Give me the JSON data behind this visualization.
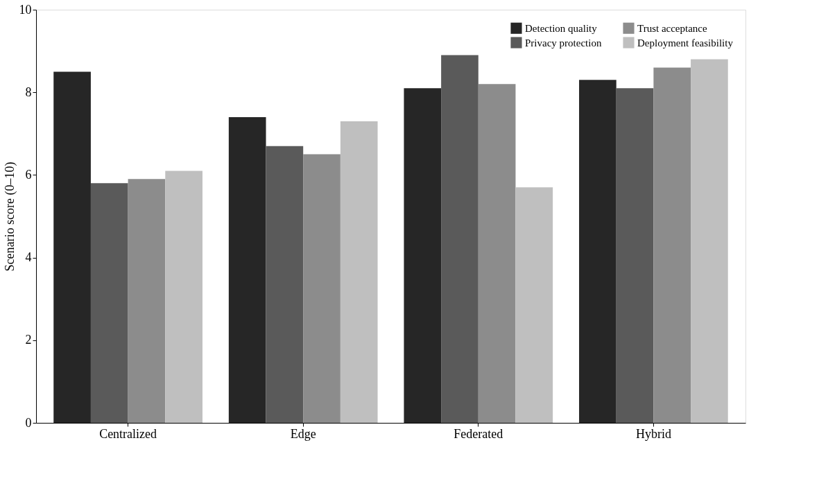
{
  "chart_data": {
    "type": "bar",
    "ylabel": "Scenario score (0–10)",
    "categories": [
      "Centralized",
      "Edge",
      "Federated",
      "Hybrid"
    ],
    "series": [
      {
        "name": "Detection quality",
        "color": "#262626",
        "values": [
          8.5,
          7.4,
          8.1,
          8.3
        ]
      },
      {
        "name": "Privacy protection",
        "color": "#5a5a5a",
        "values": [
          5.8,
          6.7,
          8.9,
          8.1
        ]
      },
      {
        "name": "Trust acceptance",
        "color": "#8c8c8c",
        "values": [
          5.9,
          6.5,
          8.2,
          8.6
        ]
      },
      {
        "name": "Deployment feasibility",
        "color": "#bfbfbf",
        "values": [
          6.1,
          7.3,
          5.7,
          8.8
        ]
      }
    ],
    "ylim": [
      0,
      10
    ],
    "yticks": [
      0,
      2,
      4,
      6,
      8,
      10
    ],
    "grid": false,
    "legend": "top right"
  }
}
